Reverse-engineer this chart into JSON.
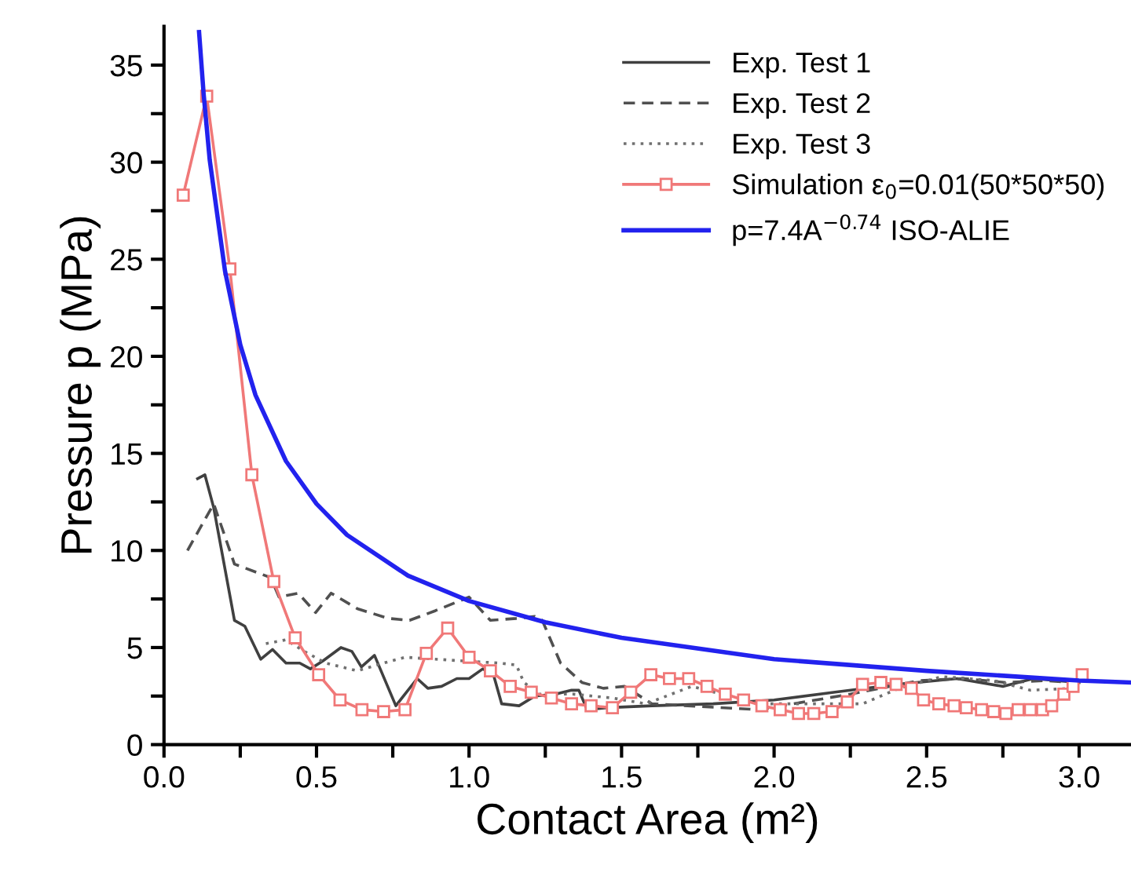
{
  "chart_data": {
    "type": "line",
    "xlabel": "Contact Area (m²)",
    "ylabel": "Pressure p (MPa)",
    "xlim": [
      0,
      3.17
    ],
    "ylim": [
      0,
      37
    ],
    "xticks": [
      {
        "value": 0,
        "label": "0.0"
      },
      {
        "value": 0.25,
        "label": null
      },
      {
        "value": 0.5,
        "label": "0.5"
      },
      {
        "value": 0.75,
        "label": null
      },
      {
        "value": 1.0,
        "label": "1.0"
      },
      {
        "value": 1.25,
        "label": null
      },
      {
        "value": 1.5,
        "label": "1.5"
      },
      {
        "value": 1.75,
        "label": null
      },
      {
        "value": 2.0,
        "label": "2.0"
      },
      {
        "value": 2.25,
        "label": null
      },
      {
        "value": 2.5,
        "label": "2.5"
      },
      {
        "value": 2.75,
        "label": null
      },
      {
        "value": 3.0,
        "label": "3.0"
      }
    ],
    "yticks": [
      0,
      {
        "value": 2.5,
        "label": null
      },
      5,
      {
        "value": 7.5,
        "label": null
      },
      10,
      {
        "value": 12.5,
        "label": null
      },
      15,
      {
        "value": 17.5,
        "label": null
      },
      20,
      {
        "value": 22.5,
        "label": null
      },
      25,
      {
        "value": 27.5,
        "label": null
      },
      30,
      {
        "value": 32.5,
        "label": null
      },
      35
    ],
    "grid": false,
    "legend": "top right",
    "series": [
      {
        "name": "Exp. Test 1",
        "color": "#404040",
        "line_style": "solid",
        "marker": "none",
        "x": [
          0.11,
          0.134,
          0.163,
          0.231,
          0.265,
          0.317,
          0.356,
          0.4,
          0.445,
          0.48,
          0.52,
          0.58,
          0.616,
          0.647,
          0.69,
          0.76,
          0.83,
          0.865,
          0.91,
          0.96,
          1.0,
          1.045,
          1.08,
          1.107,
          1.164,
          1.216,
          1.284,
          1.336,
          1.36,
          1.387,
          1.45,
          1.6,
          1.8,
          2.0,
          2.2,
          2.4,
          2.6,
          2.75,
          2.85,
          3.0
        ],
        "values": [
          13.7,
          13.9,
          12.2,
          6.4,
          6.1,
          4.4,
          4.9,
          4.2,
          4.2,
          3.9,
          4.3,
          5.0,
          4.8,
          4.0,
          4.6,
          2.0,
          3.4,
          2.9,
          3.0,
          3.4,
          3.4,
          3.9,
          3.6,
          2.1,
          2.0,
          2.5,
          2.6,
          2.8,
          2.8,
          1.8,
          1.9,
          2.0,
          2.1,
          2.3,
          2.7,
          3.1,
          3.4,
          3.0,
          3.4,
          3.2
        ]
      },
      {
        "name": "Exp. Test 2",
        "color": "#505050",
        "line_style": "dashed",
        "marker": "none",
        "x": [
          0.077,
          0.163,
          0.231,
          0.35,
          0.377,
          0.44,
          0.497,
          0.548,
          0.634,
          0.736,
          0.805,
          0.89,
          1.0,
          1.07,
          1.155,
          1.216,
          1.24,
          1.3,
          1.37,
          1.44,
          1.51,
          1.6,
          1.95,
          2.25,
          2.48,
          2.62,
          2.76,
          2.89,
          2.98
        ],
        "values": [
          10.0,
          12.4,
          9.3,
          8.6,
          7.6,
          7.8,
          6.8,
          7.8,
          7.0,
          6.5,
          6.4,
          6.9,
          7.6,
          6.4,
          6.5,
          6.6,
          6.4,
          4.2,
          3.2,
          2.9,
          3.0,
          2.1,
          1.8,
          2.6,
          3.3,
          3.4,
          3.2,
          3.3,
          3.2
        ]
      },
      {
        "name": "Exp. Test 3",
        "color": "#707070",
        "line_style": "dotted",
        "marker": "none",
        "x": [
          0.334,
          0.4,
          0.46,
          0.53,
          0.634,
          0.72,
          0.79,
          0.89,
          0.99,
          1.1,
          1.155,
          1.18,
          1.23,
          1.34,
          1.47,
          1.58,
          1.73,
          1.95,
          2.08,
          2.29,
          2.41,
          2.55,
          2.72,
          2.84,
          2.98
        ],
        "values": [
          5.2,
          5.4,
          4.8,
          4.2,
          3.8,
          4.2,
          4.5,
          4.4,
          4.3,
          4.2,
          4.1,
          3.2,
          2.6,
          2.6,
          2.4,
          2.1,
          3.0,
          2.1,
          2.1,
          2.1,
          2.9,
          3.5,
          3.3,
          2.8,
          2.9
        ]
      },
      {
        "name": "Simulation ε$_{0}$=0.01(50*50*50)",
        "color": "#f07878",
        "line_style": "solid",
        "marker": "square",
        "x": [
          0.063,
          0.14,
          0.216,
          0.288,
          0.36,
          0.43,
          0.507,
          0.577,
          0.649,
          0.72,
          0.79,
          0.86,
          0.93,
          1.0,
          1.07,
          1.135,
          1.204,
          1.27,
          1.336,
          1.4,
          1.47,
          1.53,
          1.596,
          1.657,
          1.72,
          1.78,
          1.84,
          1.9,
          1.96,
          2.02,
          2.08,
          2.13,
          2.19,
          2.24,
          2.29,
          2.35,
          2.4,
          2.45,
          2.49,
          2.54,
          2.59,
          2.63,
          2.68,
          2.72,
          2.76,
          2.8,
          2.84,
          2.88,
          2.91,
          2.95,
          2.98,
          3.01
        ],
        "values": [
          28.3,
          33.4,
          24.5,
          13.9,
          8.4,
          5.5,
          3.6,
          2.3,
          1.8,
          1.7,
          1.8,
          4.7,
          6.0,
          4.5,
          3.8,
          3.0,
          2.7,
          2.4,
          2.1,
          2.0,
          1.9,
          2.7,
          3.6,
          3.4,
          3.4,
          3.0,
          2.6,
          2.3,
          2.0,
          1.8,
          1.6,
          1.6,
          1.7,
          2.2,
          3.1,
          3.2,
          3.1,
          2.9,
          2.3,
          2.1,
          2.0,
          1.9,
          1.8,
          1.7,
          1.6,
          1.8,
          1.8,
          1.8,
          2.0,
          2.6,
          3.0,
          3.6
        ]
      },
      {
        "name": "p=7.4A$^{−0.74}$ ISO-ALIE",
        "color": "#2222ee",
        "line_style": "solid",
        "marker": "none",
        "x": [
          0.115,
          0.13,
          0.15,
          0.2,
          0.25,
          0.3,
          0.4,
          0.5,
          0.6,
          0.8,
          1.0,
          1.25,
          1.5,
          2.0,
          2.5,
          3.0,
          3.17
        ],
        "values": [
          36.7,
          33.5,
          30.1,
          24.4,
          20.6,
          18.0,
          14.6,
          12.4,
          10.8,
          8.7,
          7.4,
          6.3,
          5.5,
          4.4,
          3.8,
          3.3,
          3.2
        ]
      }
    ]
  }
}
